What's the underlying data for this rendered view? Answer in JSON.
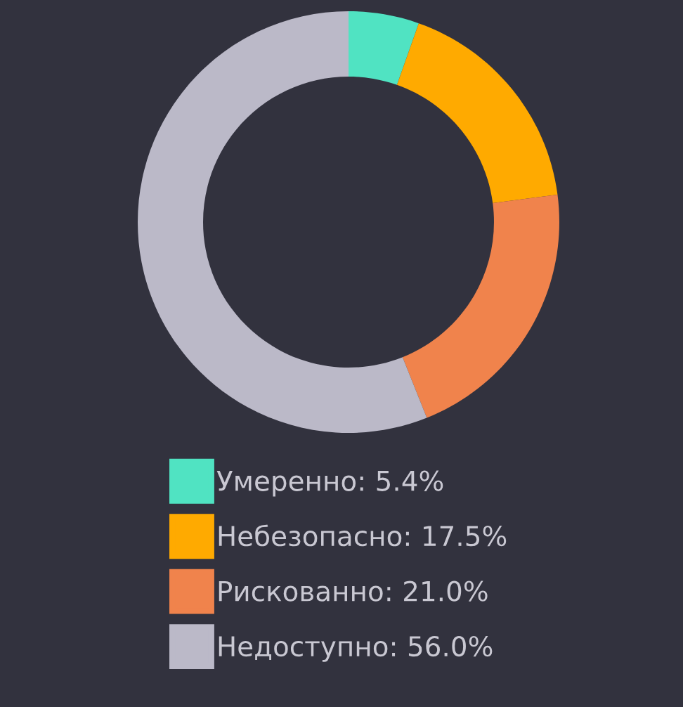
{
  "chart_data": {
    "type": "donut",
    "categories": [
      "Умеренно: 5.4%",
      "Небезопасно: 17.5%",
      "Рискованно: 21.0%",
      "Недоступно: 56.0%"
    ],
    "values": [
      5.4,
      17.5,
      21.0,
      56.0
    ],
    "colors": [
      "#50e3c2",
      "#ffaa00",
      "#f0834c",
      "#bbb9c8"
    ],
    "legend": "bottom"
  }
}
